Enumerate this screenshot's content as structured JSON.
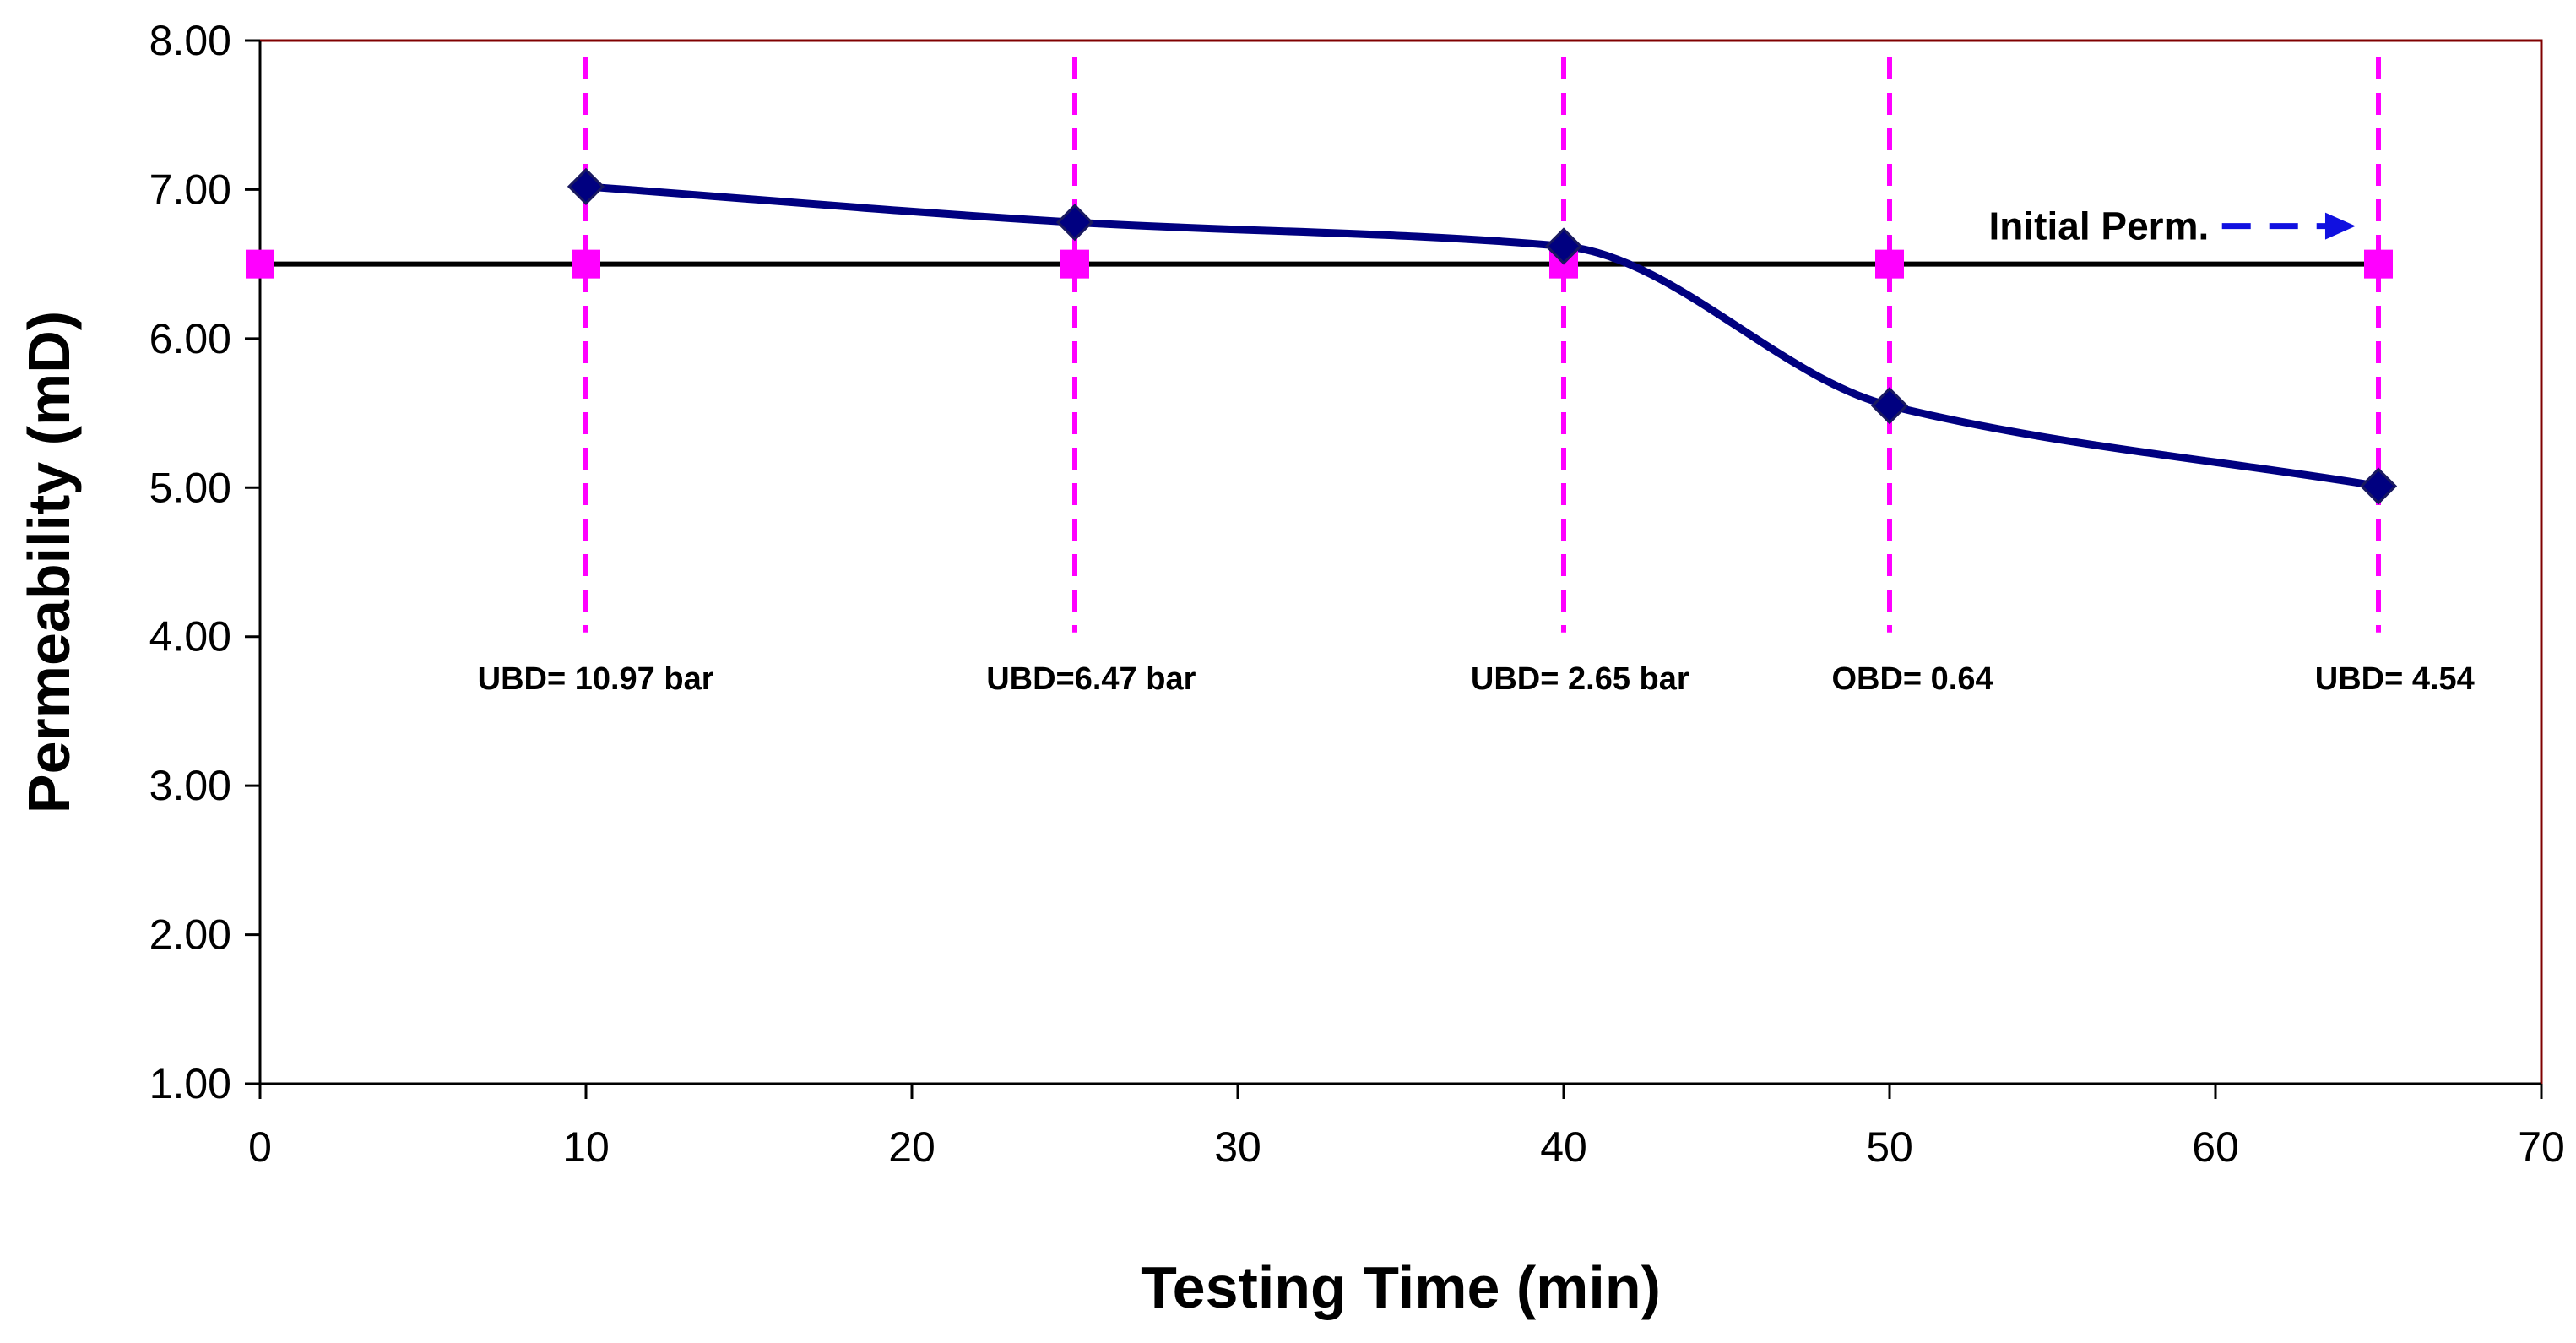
{
  "chart_data": {
    "type": "line",
    "title": "",
    "xlabel": "Testing  Time (min)",
    "ylabel": "Permeability (mD)",
    "xlim": [
      0,
      70
    ],
    "ylim": [
      1,
      8
    ],
    "x_ticks": [
      0,
      10,
      20,
      30,
      40,
      50,
      60,
      70
    ],
    "y_ticks": [
      1,
      2,
      3,
      4,
      5,
      6,
      7,
      8
    ],
    "x_tick_labels": [
      "0",
      "10",
      "20",
      "30",
      "40",
      "50",
      "60",
      "70"
    ],
    "y_tick_labels": [
      "1.00",
      "2.00",
      "3.00",
      "4.00",
      "5.00",
      "6.00",
      "7.00",
      "8.00"
    ],
    "grid": false,
    "series": [
      {
        "name": "Permeability",
        "x": [
          10,
          25,
          40,
          50,
          65
        ],
        "values": [
          7.02,
          6.78,
          6.62,
          5.55,
          5.01
        ],
        "color": "#000080",
        "marker": "diamond",
        "smooth": true
      },
      {
        "name": "Initial Perm.",
        "x": [
          0,
          10,
          25,
          40,
          50,
          65
        ],
        "values": [
          6.5,
          6.5,
          6.5,
          6.5,
          6.5,
          6.5
        ],
        "color": "#000000",
        "marker_color": "#FF00FF",
        "marker": "square"
      }
    ],
    "vertical_markers": {
      "x": [
        10,
        25,
        40,
        50,
        65
      ],
      "color": "#FF00FF",
      "y_bottom": 4.0
    },
    "annotations": [
      {
        "text": "UBD= 10.97 bar",
        "x": 10.3,
        "y": 3.72
      },
      {
        "text": "UBD=6.47 bar",
        "x": 25.5,
        "y": 3.72
      },
      {
        "text": "UBD= 2.65 bar",
        "x": 40.5,
        "y": 3.72
      },
      {
        "text": "OBD= 0.64",
        "x": 50.7,
        "y": 3.72
      },
      {
        "text": "UBD= 4.54",
        "x": 65.5,
        "y": 3.72
      }
    ],
    "legend": {
      "label": "Initial Perm.",
      "position": "top-right",
      "arrow_color": "#1010E0"
    },
    "colors": {
      "frame": "#800000",
      "axis": "#000000"
    }
  }
}
